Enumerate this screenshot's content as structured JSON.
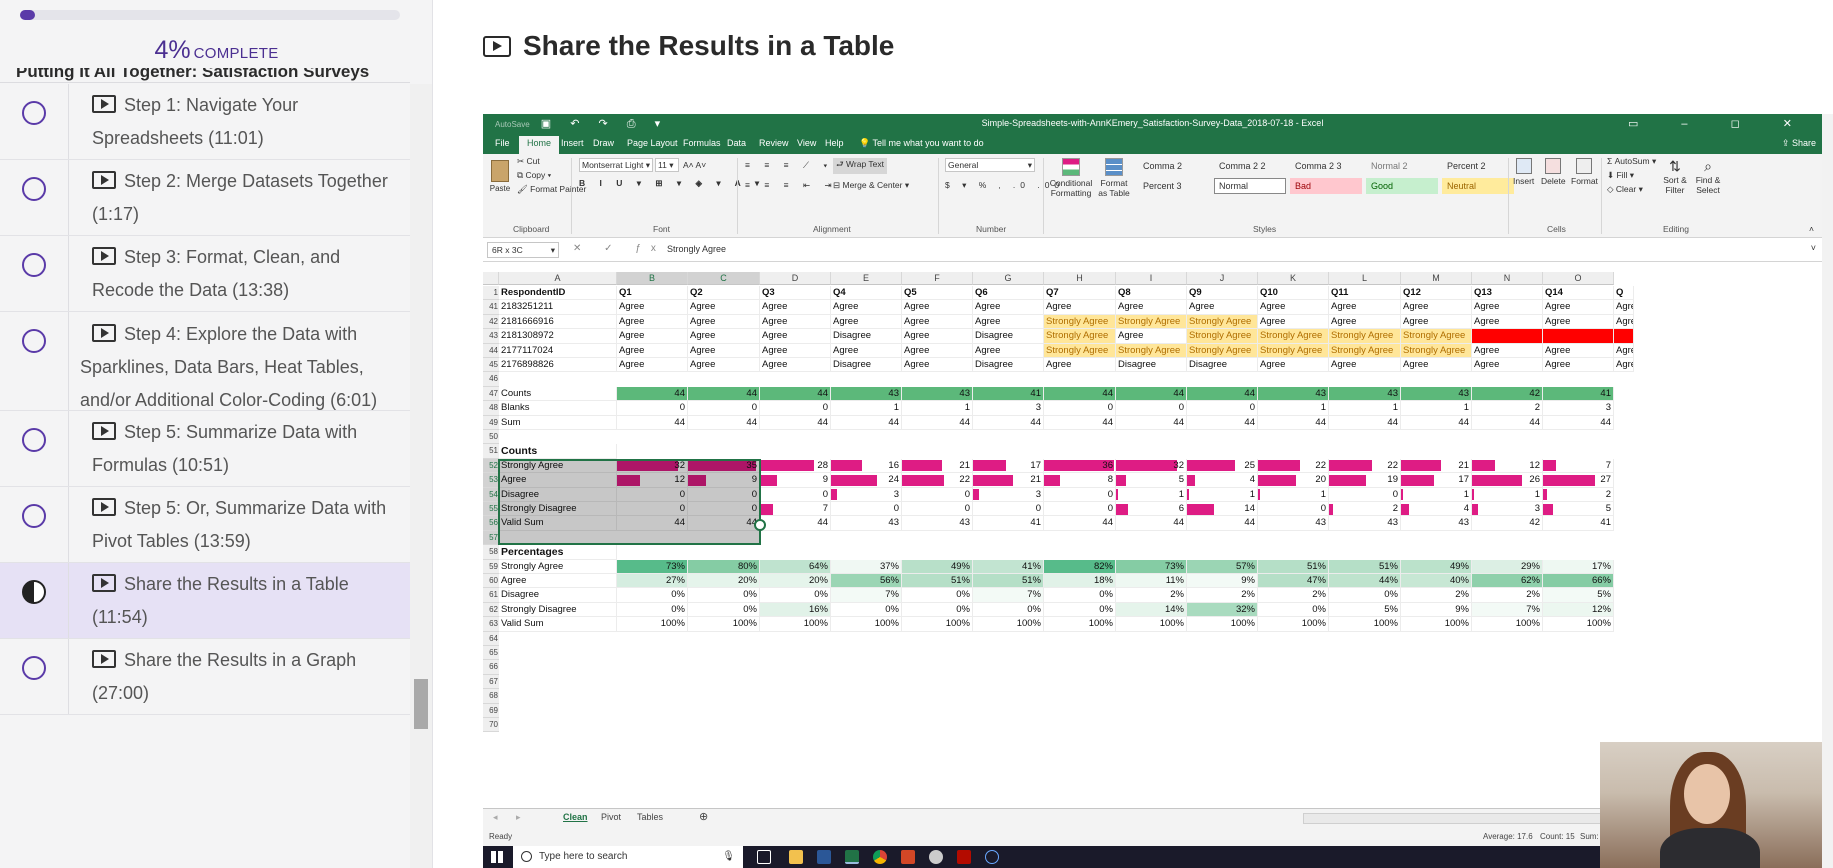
{
  "progress": {
    "percent": "4%",
    "label": "COMPLETE",
    "fill": 0.04
  },
  "section_title": "Putting It All Together: Satisfaction Surveys",
  "lessons": [
    {
      "title": "Step 1: Navigate Your Spreadsheets (11:01)"
    },
    {
      "title": "Step 2: Merge Datasets Together (1:17)"
    },
    {
      "title": "Step 3: Format, Clean, and Recode the Data (13:38)"
    },
    {
      "title": "Step 4: Explore the Data with Sparklines, Data Bars, Heat Tables, and/or Additional Color-Coding (6:01)"
    },
    {
      "title": "Step 5: Summarize Data with Formulas (10:51)"
    },
    {
      "title": "Step 5: Or, Summarize Data with Pivot Tables (13:59)"
    },
    {
      "title": "Share the Results in a Table (11:54)",
      "active": true
    },
    {
      "title": "Share the Results in a Graph (27:00)"
    }
  ],
  "main_title": "Share the Results in a Table",
  "excel": {
    "autosave": "AutoSave",
    "window_title": "Simple-Spreadsheets-with-AnnKEmery_Satisfaction-Survey-Data_2018-07-18 - Excel",
    "share": "Share",
    "ribbon_tabs": [
      "File",
      "Home",
      "Insert",
      "Draw",
      "Page Layout",
      "Formulas",
      "Data",
      "Review",
      "View",
      "Help"
    ],
    "tell_me": "Tell me what you want to do",
    "clipboard": {
      "paste": "Paste",
      "cut": "Cut",
      "copy": "Copy",
      "format_painter": "Format Painter",
      "label": "Clipboard"
    },
    "font": {
      "name": "Montserrat Light",
      "size": "11",
      "label": "Font"
    },
    "alignment": {
      "wrap": "Wrap Text",
      "merge": "Merge & Center",
      "label": "Alignment"
    },
    "number": {
      "format": "General",
      "label": "Number"
    },
    "styles": {
      "conditional": "Conditional Formatting",
      "format_table": "Format as Table",
      "cells": [
        "Comma 2",
        "Comma 2 2",
        "Comma 2 3",
        "Normal 2",
        "Percent 2",
        "Percent 3",
        "Normal",
        "Bad",
        "Good",
        "Neutral"
      ],
      "label": "Styles"
    },
    "cells_grp": {
      "insert": "Insert",
      "delete": "Delete",
      "format": "Format",
      "label": "Cells"
    },
    "editing": {
      "autosum": "AutoSum",
      "fill": "Fill",
      "clear": "Clear",
      "sort": "Sort & Filter",
      "find": "Find & Select",
      "label": "Editing"
    },
    "name_box": "6R x 3C",
    "formula_value": "Strongly Agree",
    "col_letters": [
      "A",
      "B",
      "C",
      "D",
      "E",
      "F",
      "G",
      "H",
      "I",
      "J",
      "K",
      "L",
      "M",
      "N",
      "O"
    ],
    "header_row": {
      "row": "1",
      "cells": [
        "RespondentID",
        "Q1",
        "Q2",
        "Q3",
        "Q4",
        "Q5",
        "Q6",
        "Q7",
        "Q8",
        "Q9",
        "Q10",
        "Q11",
        "Q12",
        "Q13",
        "Q14",
        "Q"
      ]
    },
    "data_rows": [
      {
        "row": "41",
        "cells": [
          "2183251211",
          "Agree",
          "Agree",
          "Agree",
          "Agree",
          "Agree",
          "Agree",
          "Agree",
          "Agree",
          "Agree",
          "Agree",
          "Agree",
          "Agree",
          "Agree",
          "Agree",
          "Agre"
        ]
      },
      {
        "row": "42",
        "cells": [
          "2181666916",
          "Agree",
          "Agree",
          "Agree",
          "Agree",
          "Agree",
          "Agree",
          "Strongly Agree",
          "Strongly Agree",
          "Strongly Agree",
          "Agree",
          "Agree",
          "Agree",
          "Agree",
          "Agree",
          "Agre"
        ]
      },
      {
        "row": "43",
        "cells": [
          "2181308972",
          "Agree",
          "Agree",
          "Agree",
          "Disagree",
          "Agree",
          "Disagree",
          "Strongly Agree",
          "Agree",
          "Strongly Agree",
          "Strongly Agree",
          "Strongly Agree",
          "Strongly Agree",
          "",
          "",
          ""
        ]
      },
      {
        "row": "44",
        "cells": [
          "2177117024",
          "Agree",
          "Agree",
          "Agree",
          "Agree",
          "Agree",
          "Agree",
          "Strongly Agree",
          "Strongly Agree",
          "Strongly Agree",
          "Strongly Agree",
          "Strongly Agree",
          "Strongly Agree",
          "Agree",
          "Agree",
          "Agre"
        ]
      },
      {
        "row": "45",
        "cells": [
          "2176898826",
          "Agree",
          "Agree",
          "Agree",
          "Disagree",
          "Agree",
          "Disagree",
          "Agree",
          "Disagree",
          "Disagree",
          "Agree",
          "Agree",
          "Agree",
          "Agree",
          "Agree",
          "Agre"
        ]
      }
    ],
    "summary_rows": [
      {
        "row": "47",
        "label": "Counts",
        "values": [
          "44",
          "44",
          "44",
          "43",
          "43",
          "41",
          "44",
          "44",
          "44",
          "43",
          "43",
          "43",
          "42",
          "41"
        ]
      },
      {
        "row": "48",
        "label": "Blanks",
        "values": [
          "0",
          "0",
          "0",
          "1",
          "1",
          "3",
          "0",
          "0",
          "0",
          "1",
          "1",
          "1",
          "2",
          "3"
        ]
      },
      {
        "row": "49",
        "label": "Sum",
        "values": [
          "44",
          "44",
          "44",
          "44",
          "44",
          "44",
          "44",
          "44",
          "44",
          "44",
          "44",
          "44",
          "44",
          "44"
        ]
      }
    ],
    "counts_title": {
      "row": "51",
      "label": "Counts"
    },
    "count_rows": [
      {
        "row": "52",
        "label": "Strongly Agree",
        "values": [
          "32",
          "35",
          "28",
          "16",
          "21",
          "17",
          "36",
          "32",
          "25",
          "22",
          "22",
          "21",
          "12",
          "7"
        ]
      },
      {
        "row": "53",
        "label": "Agree",
        "values": [
          "12",
          "9",
          "9",
          "24",
          "22",
          "21",
          "8",
          "5",
          "4",
          "20",
          "19",
          "17",
          "26",
          "27"
        ]
      },
      {
        "row": "54",
        "label": "Disagree",
        "values": [
          "0",
          "0",
          "0",
          "3",
          "0",
          "3",
          "0",
          "1",
          "1",
          "1",
          "0",
          "1",
          "1",
          "2"
        ]
      },
      {
        "row": "55",
        "label": "Strongly Disagree",
        "values": [
          "0",
          "0",
          "7",
          "0",
          "0",
          "0",
          "0",
          "6",
          "14",
          "0",
          "2",
          "4",
          "3",
          "5"
        ]
      },
      {
        "row": "56",
        "label": "Valid Sum",
        "values": [
          "44",
          "44",
          "44",
          "43",
          "43",
          "41",
          "44",
          "44",
          "44",
          "43",
          "43",
          "43",
          "42",
          "41"
        ]
      }
    ],
    "pct_title": {
      "row": "58",
      "label": "Percentages"
    },
    "pct_rows": [
      {
        "row": "59",
        "label": "Strongly Agree",
        "values": [
          "73%",
          "80%",
          "64%",
          "37%",
          "49%",
          "41%",
          "82%",
          "73%",
          "57%",
          "51%",
          "51%",
          "49%",
          "29%",
          "17%"
        ]
      },
      {
        "row": "60",
        "label": "Agree",
        "values": [
          "27%",
          "20%",
          "20%",
          "56%",
          "51%",
          "51%",
          "18%",
          "11%",
          "9%",
          "47%",
          "44%",
          "40%",
          "62%",
          "66%"
        ]
      },
      {
        "row": "61",
        "label": "Disagree",
        "values": [
          "0%",
          "0%",
          "0%",
          "7%",
          "0%",
          "7%",
          "0%",
          "2%",
          "2%",
          "2%",
          "0%",
          "2%",
          "2%",
          "5%"
        ]
      },
      {
        "row": "62",
        "label": "Strongly Disagree",
        "values": [
          "0%",
          "0%",
          "16%",
          "0%",
          "0%",
          "0%",
          "0%",
          "14%",
          "32%",
          "0%",
          "5%",
          "9%",
          "7%",
          "12%"
        ]
      },
      {
        "row": "63",
        "label": "Valid Sum",
        "values": [
          "100%",
          "100%",
          "100%",
          "100%",
          "100%",
          "100%",
          "100%",
          "100%",
          "100%",
          "100%",
          "100%",
          "100%",
          "100%",
          "100%"
        ]
      }
    ],
    "empty_rows": [
      "46",
      "50",
      "57",
      "64",
      "65",
      "66",
      "67",
      "68",
      "69",
      "70"
    ],
    "sheet_tabs": [
      "Clean",
      "Pivot",
      "Tables"
    ],
    "status": {
      "ready": "Ready",
      "average": "Average: 17.6",
      "count": "Count: 15",
      "sum": "Sum:"
    },
    "taskbar_search": "Type here to search",
    "colors": {
      "excel_green": "#217346",
      "bar_pink": "#de1c84",
      "accent_purple": "#5a3aa8"
    }
  }
}
